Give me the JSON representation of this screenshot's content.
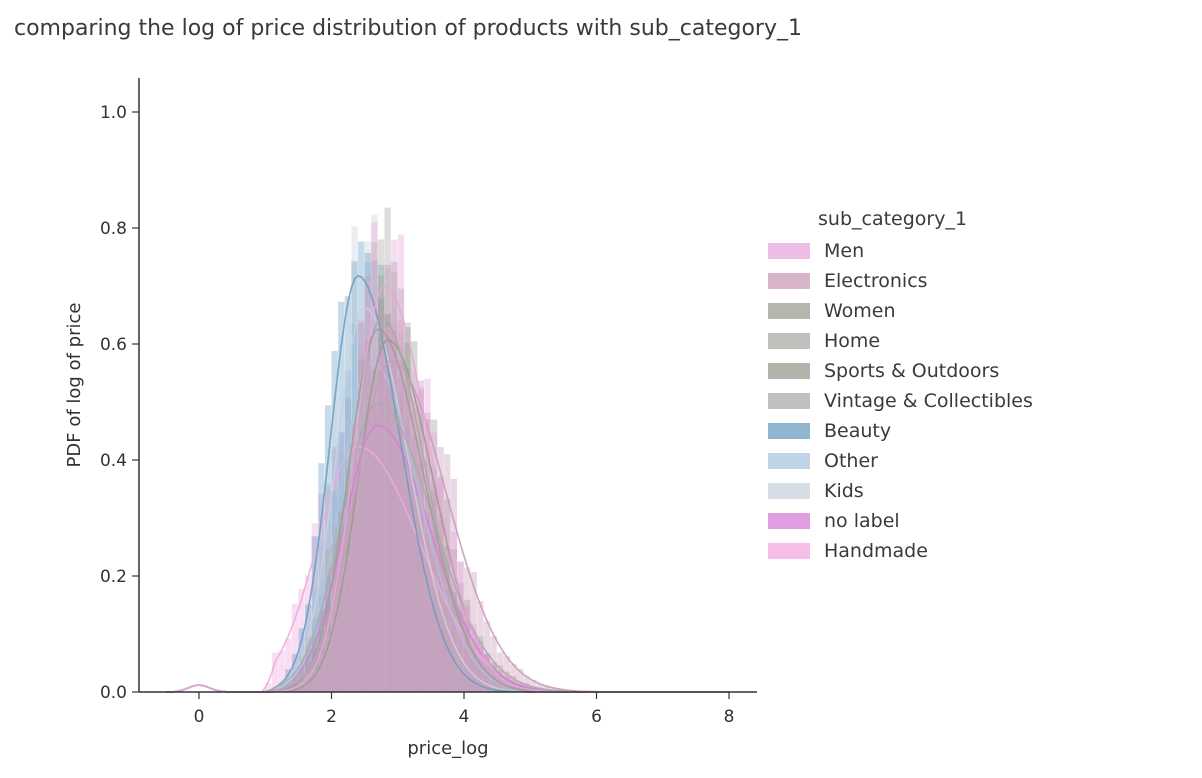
{
  "chart_data": {
    "type": "histogram",
    "title": "comparing the log of price distribution of products with sub_category_1",
    "xlabel": "price_log",
    "ylabel": "PDF of log of price",
    "xlim": [
      -0.5,
      8.2
    ],
    "ylim": [
      0,
      1.05
    ],
    "xticks": [
      0,
      2,
      4,
      6,
      8
    ],
    "yticks": [
      0.0,
      0.2,
      0.4,
      0.6,
      0.8,
      1.0
    ],
    "ytick_labels": [
      "0.0",
      "0.2",
      "0.4",
      "0.6",
      "0.8",
      "1.0"
    ],
    "grid": false,
    "legend_title": "sub_category_1",
    "legend_position": "right",
    "bin_width": 0.1,
    "series": [
      {
        "name": "Men",
        "color": "#e9a6dc",
        "peak": 0.76,
        "mode": 2.8,
        "spread": 0.62
      },
      {
        "name": "Electronics",
        "color": "#c99bb8",
        "peak": 0.62,
        "mode": 2.9,
        "spread": 0.75
      },
      {
        "name": "Women",
        "color": "#9e9e94",
        "peak": 0.68,
        "mode": 2.7,
        "spread": 0.62
      },
      {
        "name": "Home",
        "color": "#a9a9a4",
        "peak": 0.7,
        "mode": 2.75,
        "spread": 0.6
      },
      {
        "name": "Sports & Outdoors",
        "color": "#9a9a90",
        "peak": 0.66,
        "mode": 2.85,
        "spread": 0.62
      },
      {
        "name": "Vintage & Collectibles",
        "color": "#a8acaa",
        "peak": 0.54,
        "mode": 2.7,
        "spread": 0.75
      },
      {
        "name": "Beauty",
        "color": "#6b9dc2",
        "peak": 0.78,
        "mode": 2.4,
        "spread": 0.58
      },
      {
        "name": "Other",
        "color": "#a8c4dc",
        "peak": 0.62,
        "mode": 2.6,
        "spread": 0.65
      },
      {
        "name": "Kids",
        "color": "#c8d2dc",
        "peak": 0.72,
        "mode": 2.5,
        "spread": 0.6
      },
      {
        "name": "no label",
        "color": "#d67ed6",
        "peak": 0.5,
        "mode": 2.7,
        "spread": 0.72
      },
      {
        "name": "Handmade",
        "color": "#f0a8e0",
        "peak": 0.46,
        "mode": 2.4,
        "spread": 0.85
      }
    ]
  }
}
